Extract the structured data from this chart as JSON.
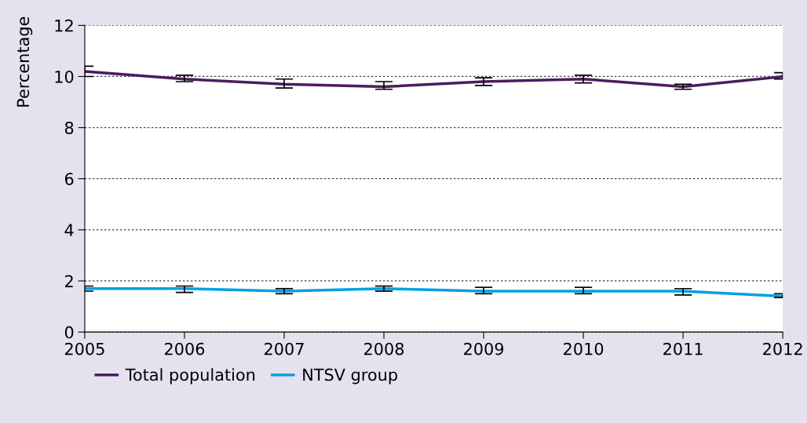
{
  "chart_data": {
    "type": "line",
    "ylabel": "Percentage",
    "x": [
      2005,
      2006,
      2007,
      2008,
      2009,
      2010,
      2011,
      2012
    ],
    "series": [
      {
        "name": "Total population",
        "color": "#4b1d5e",
        "values": [
          10.2,
          9.9,
          9.7,
          9.6,
          9.8,
          9.9,
          9.6,
          10.0
        ],
        "errors": [
          [
            10.0,
            10.4
          ],
          [
            9.8,
            10.05
          ],
          [
            9.55,
            9.9
          ],
          [
            9.5,
            9.8
          ],
          [
            9.65,
            9.95
          ],
          [
            9.75,
            10.05
          ],
          [
            9.5,
            9.7
          ],
          [
            9.9,
            10.15
          ]
        ]
      },
      {
        "name": "NTSV group",
        "color": "#00a0e3",
        "values": [
          1.7,
          1.7,
          1.6,
          1.7,
          1.6,
          1.6,
          1.6,
          1.4
        ],
        "errors": [
          [
            1.6,
            1.8
          ],
          [
            1.55,
            1.8
          ],
          [
            1.5,
            1.7
          ],
          [
            1.6,
            1.8
          ],
          [
            1.5,
            1.75
          ],
          [
            1.5,
            1.75
          ],
          [
            1.45,
            1.7
          ],
          [
            1.35,
            1.5
          ]
        ]
      }
    ],
    "xlim": [
      2005,
      2012
    ],
    "xticks": [
      2005,
      2006,
      2007,
      2008,
      2009,
      2010,
      2011,
      2012
    ],
    "ylim": [
      0,
      12
    ],
    "yticks": [
      0,
      2,
      4,
      6,
      8,
      10,
      12
    ],
    "grid": "y",
    "legend": "bottom left",
    "marker": "none",
    "line_style": "solid"
  }
}
